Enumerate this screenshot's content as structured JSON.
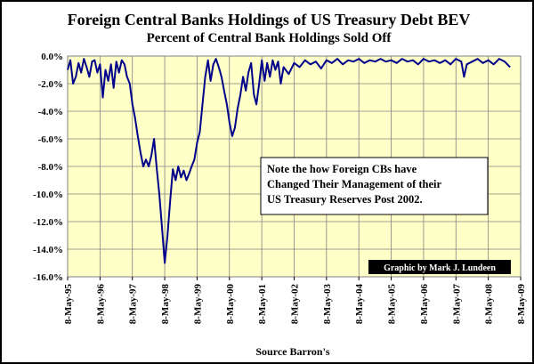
{
  "chart_data": {
    "type": "line",
    "title": "Foreign Central Banks Holdings of US Treasury Debt BEV",
    "subtitle": "Percent of Central Bank Holdings Sold Off",
    "xlabel": "Source Barron's",
    "ylabel": "",
    "y_ticks": [
      "0.0%",
      "-2.0%",
      "-4.0%",
      "-6.0%",
      "-8.0%",
      "-10.0%",
      "-12.0%",
      "-14.0%",
      "-16.0%"
    ],
    "ylim": [
      -16,
      0
    ],
    "x_ticks": [
      "8-May-95",
      "8-May-96",
      "8-May-97",
      "8-May-98",
      "8-May-99",
      "8-May-00",
      "8-May-01",
      "8-May-02",
      "8-May-03",
      "8-May-04",
      "8-May-05",
      "8-May-06",
      "8-May-07",
      "8-May-08",
      "8-May-09"
    ],
    "xlim": [
      "1995-05-08",
      "2009-05-08"
    ],
    "grid": true,
    "annotation": [
      "Note the how Foreign CBs have",
      "Changed Their Management of their",
      "US Treasury Reserves Post  2002."
    ],
    "credit": "Graphic by Mark J. Lundeen",
    "colors": {
      "plot_bg": "#ffffc8",
      "line": "#00008b",
      "credit_bg": "#000000",
      "credit_text": "#ffffff"
    },
    "series": [
      {
        "x": [
          "1995-05-08",
          "1995-06-08",
          "1995-07-08",
          "1995-08-08",
          "1995-09-08",
          "1995-10-08",
          "1995-11-08",
          "1995-12-08",
          "1996-01-08",
          "1996-02-08",
          "1996-03-08",
          "1996-04-08",
          "1996-05-08",
          "1996-06-08",
          "1996-07-08",
          "1996-08-08",
          "1996-09-08",
          "1996-10-08",
          "1996-11-08",
          "1996-12-08",
          "1997-01-08",
          "1997-02-08",
          "1997-03-08",
          "1997-04-08",
          "1997-05-08",
          "1997-06-08",
          "1997-07-08",
          "1997-08-08",
          "1997-09-08",
          "1997-10-08",
          "1997-11-08",
          "1997-12-08",
          "1998-01-08",
          "1998-02-08",
          "1998-03-08",
          "1998-04-08",
          "1998-05-08",
          "1998-06-08",
          "1998-07-08",
          "1998-08-08",
          "1998-09-08",
          "1998-10-08",
          "1998-11-08",
          "1998-12-08",
          "1999-01-08",
          "1999-02-08",
          "1999-03-08",
          "1999-04-08",
          "1999-05-08",
          "1999-06-08",
          "1999-07-08",
          "1999-08-08",
          "1999-09-08",
          "1999-10-08",
          "1999-11-08",
          "1999-12-08",
          "2000-01-08",
          "2000-02-08",
          "2000-03-08",
          "2000-04-08",
          "2000-05-08",
          "2000-06-08",
          "2000-07-08",
          "2000-08-08",
          "2000-09-08",
          "2000-10-08",
          "2000-11-08",
          "2000-12-08",
          "2001-01-08",
          "2001-02-08",
          "2001-03-08",
          "2001-04-08",
          "2001-05-08",
          "2001-06-08",
          "2001-07-08",
          "2001-08-08",
          "2001-09-08",
          "2001-10-08",
          "2001-11-08",
          "2001-12-08",
          "2002-01-08",
          "2002-03-08",
          "2002-05-08",
          "2002-07-08",
          "2002-09-08",
          "2002-11-08",
          "2003-01-08",
          "2003-03-08",
          "2003-05-08",
          "2003-07-08",
          "2003-09-08",
          "2003-11-08",
          "2004-01-08",
          "2004-03-08",
          "2004-05-08",
          "2004-07-08",
          "2004-09-08",
          "2004-11-08",
          "2005-01-08",
          "2005-03-08",
          "2005-05-08",
          "2005-07-08",
          "2005-09-08",
          "2005-11-08",
          "2006-01-08",
          "2006-03-08",
          "2006-05-08",
          "2006-07-08",
          "2006-09-08",
          "2006-11-08",
          "2007-01-08",
          "2007-03-08",
          "2007-05-08",
          "2007-07-08",
          "2007-08-08",
          "2007-09-08",
          "2007-11-08",
          "2008-01-08",
          "2008-03-08",
          "2008-05-08",
          "2008-07-08",
          "2008-09-08",
          "2008-11-08",
          "2009-01-08"
        ],
        "y": [
          -1.0,
          -0.3,
          -2.0,
          -1.5,
          -0.5,
          -1.2,
          -0.2,
          -0.8,
          -1.5,
          -0.4,
          -0.3,
          -1.2,
          -0.6,
          -3.0,
          -1.0,
          -1.8,
          -0.6,
          -2.3,
          -0.4,
          -1.2,
          -0.3,
          -0.6,
          -1.5,
          -2.0,
          -3.5,
          -4.5,
          -5.8,
          -7.0,
          -8.0,
          -7.5,
          -8.0,
          -7.2,
          -6.0,
          -8.2,
          -10.0,
          -12.5,
          -15.0,
          -13.0,
          -10.5,
          -8.2,
          -9.0,
          -8.0,
          -8.8,
          -8.3,
          -9.0,
          -8.5,
          -8.0,
          -7.5,
          -6.3,
          -5.5,
          -3.5,
          -1.5,
          -0.3,
          -1.8,
          -0.6,
          -0.2,
          -0.8,
          -1.5,
          -2.5,
          -3.5,
          -4.8,
          -5.8,
          -5.2,
          -3.8,
          -2.8,
          -1.5,
          -2.5,
          -1.2,
          -0.5,
          -2.8,
          -3.5,
          -2.0,
          -0.3,
          -1.8,
          -0.5,
          -1.5,
          -0.3,
          -1.0,
          -0.4,
          -2.0,
          -0.8,
          -1.3,
          -0.5,
          -0.8,
          -0.3,
          -0.6,
          -0.4,
          -0.9,
          -0.3,
          -0.5,
          -0.2,
          -0.6,
          -0.3,
          -0.4,
          -0.2,
          -0.5,
          -0.3,
          -0.4,
          -0.2,
          -0.4,
          -0.3,
          -0.5,
          -0.2,
          -0.4,
          -0.3,
          -0.6,
          -0.2,
          -0.4,
          -0.3,
          -0.5,
          -0.3,
          -0.6,
          -0.2,
          -0.4,
          -1.5,
          -0.6,
          -0.4,
          -0.2,
          -0.5,
          -0.3,
          -0.6,
          -0.2,
          -0.4,
          -0.8
        ]
      }
    ]
  }
}
